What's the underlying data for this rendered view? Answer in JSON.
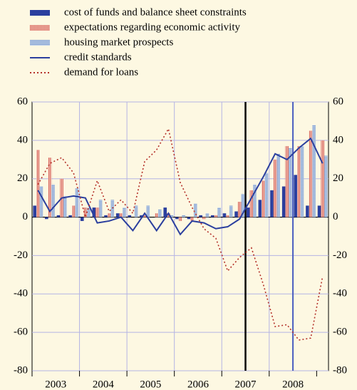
{
  "chart_data": {
    "type": "bar",
    "years": [
      "2003",
      "2004",
      "2005",
      "2006",
      "2007",
      "2008"
    ],
    "ylim": [
      -80,
      60
    ],
    "yticks": [
      -80,
      -60,
      -40,
      -20,
      0,
      20,
      40,
      60
    ],
    "grid": true,
    "series": [
      {
        "name": "cost of funds and balance sheet constraints",
        "type": "bar",
        "color": "#2b3f9e",
        "values": [
          6,
          -1,
          1,
          1,
          -2,
          5,
          1,
          2,
          1,
          1,
          0,
          5,
          -1,
          -1,
          1,
          1,
          2,
          3,
          5,
          9,
          14,
          16,
          22,
          6,
          6
        ]
      },
      {
        "name": "expectations regarding economic activity",
        "type": "bar",
        "color": "#e49a8c",
        "values": [
          35,
          31,
          20,
          6,
          5,
          5,
          2,
          2,
          0,
          1,
          2,
          2,
          -2,
          -2,
          -1,
          1,
          1,
          8,
          14,
          19,
          30,
          37,
          37,
          45,
          40
        ]
      },
      {
        "name": "housing market prospects",
        "type": "bar",
        "color": "#9db8dc",
        "values": [
          16,
          17,
          11,
          15,
          5,
          9,
          9,
          5,
          6,
          6,
          4,
          1,
          1,
          7,
          2,
          5,
          6,
          12,
          17,
          23,
          33,
          36,
          37,
          48,
          32
        ]
      },
      {
        "name": "credit standards",
        "type": "line",
        "color": "#2b3f9e",
        "values": [
          14,
          3,
          10,
          11,
          10,
          -3,
          -2,
          0,
          -7,
          2,
          -7,
          2,
          -9,
          -2,
          -3,
          -6,
          -5,
          -1,
          10,
          21,
          33,
          30,
          36,
          41,
          28
        ]
      },
      {
        "name": "demand for loans",
        "type": "line",
        "dash": true,
        "color": "#b5322a",
        "values": [
          17,
          28,
          31,
          23,
          0,
          19,
          3,
          9,
          2,
          29,
          35,
          46,
          18,
          5,
          -6,
          -11,
          -28,
          -21,
          -16,
          -35,
          -57,
          -56,
          -64,
          -63,
          -31
        ]
      }
    ]
  }
}
